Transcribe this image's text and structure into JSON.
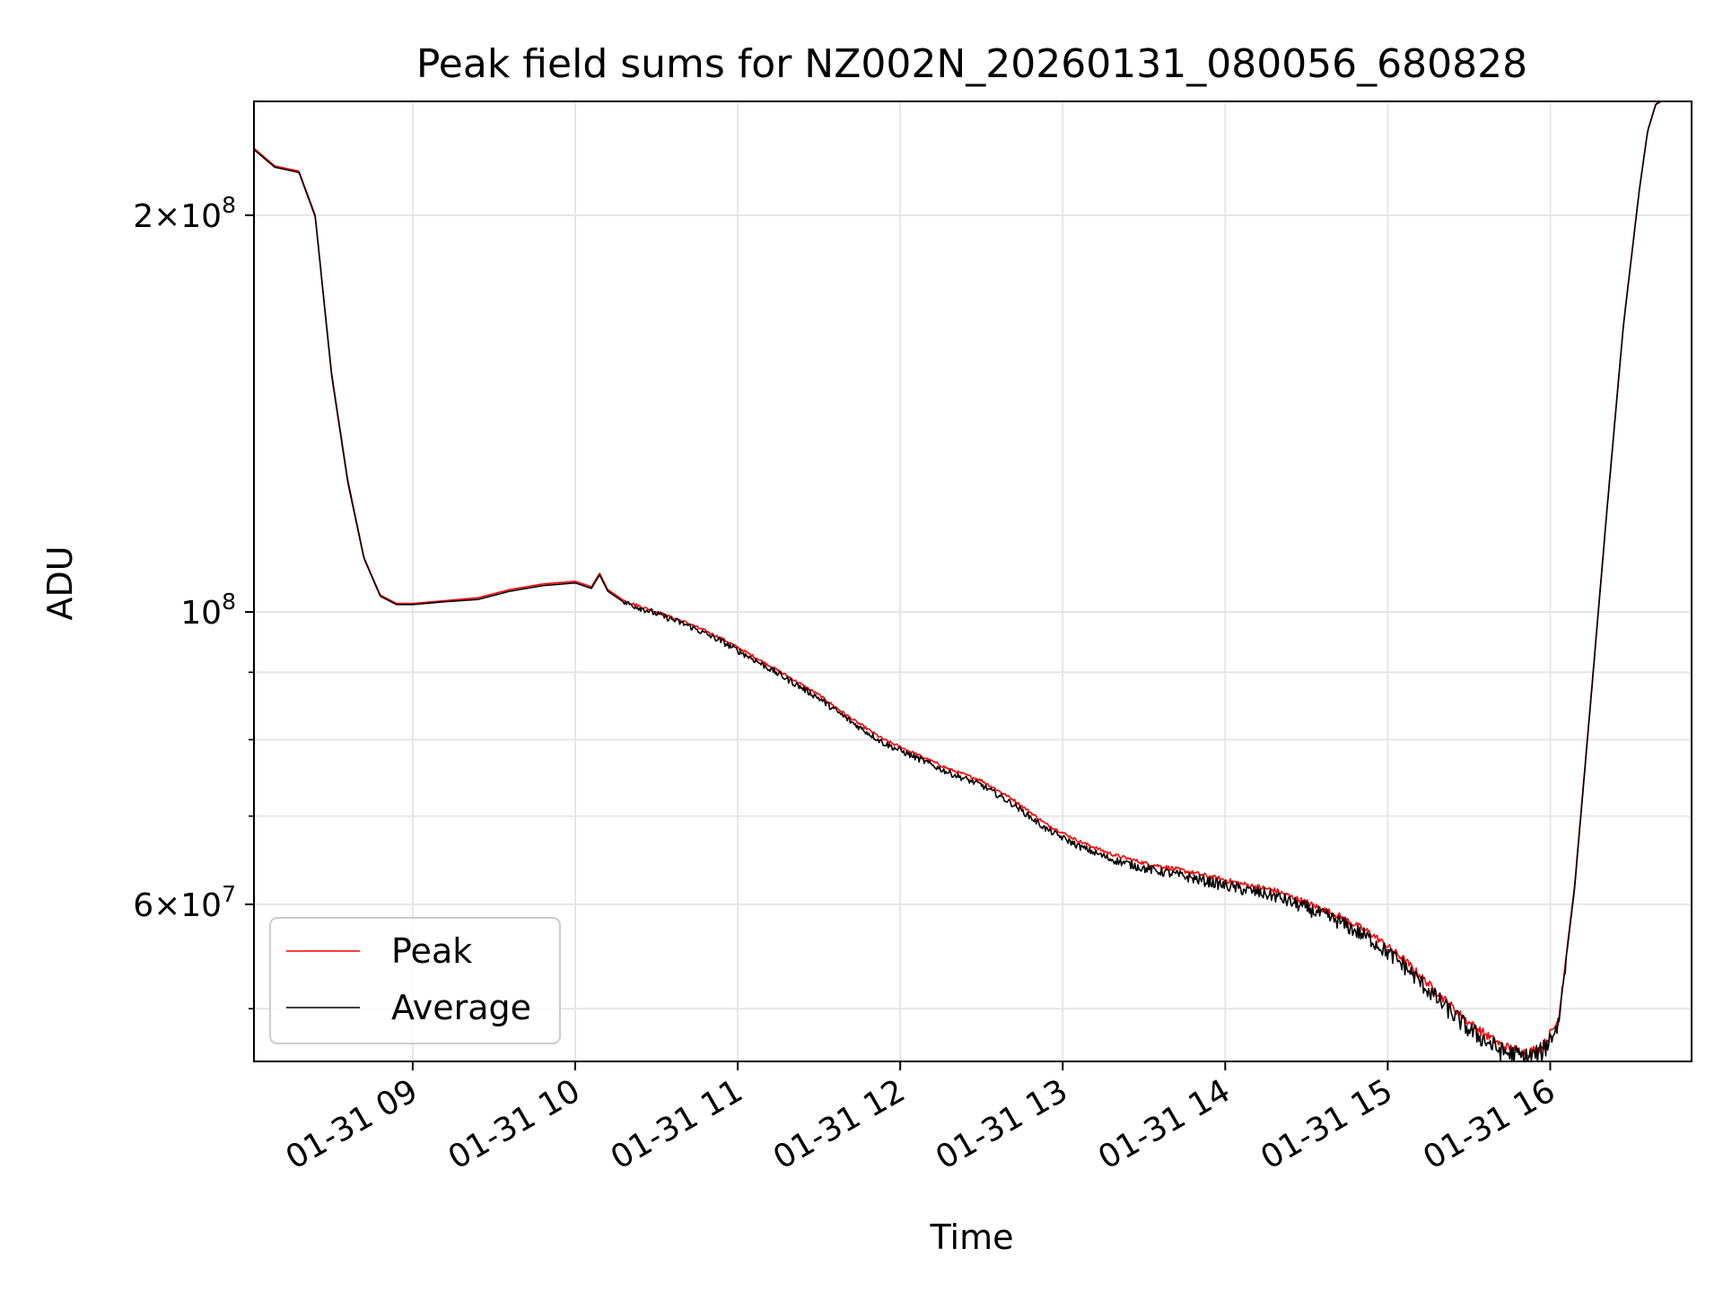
{
  "chart_data": {
    "type": "line",
    "title": "Peak field sums for NZ002N_20260131_080056_680828",
    "xlabel": "Time",
    "ylabel": "ADU",
    "x_unit": "hours since 01-31 00:00",
    "xlim": [
      8.023,
      16.87
    ],
    "ylim": [
      45600000,
      244000000
    ],
    "y_scale": "log",
    "grid": true,
    "legend_position": "lower-left",
    "x_ticks": [
      {
        "value": 9,
        "label": "01-31 09"
      },
      {
        "value": 10,
        "label": "01-31 10"
      },
      {
        "value": 11,
        "label": "01-31 11"
      },
      {
        "value": 12,
        "label": "01-31 12"
      },
      {
        "value": 13,
        "label": "01-31 13"
      },
      {
        "value": 14,
        "label": "01-31 14"
      },
      {
        "value": 15,
        "label": "01-31 15"
      },
      {
        "value": 16,
        "label": "01-31 16"
      }
    ],
    "y_major_ticks": [
      {
        "value": 60000000,
        "mantissa": "6",
        "base": "10",
        "exp": "7"
      },
      {
        "value": 100000000,
        "mantissa": "",
        "base": "10",
        "exp": "8"
      },
      {
        "value": 200000000,
        "mantissa": "2",
        "base": "10",
        "exp": "8"
      }
    ],
    "y_minor_ticks": [
      50000000,
      70000000,
      80000000,
      90000000
    ],
    "series": [
      {
        "name": "Peak",
        "color": "#ff0000",
        "x": [
          8.02,
          8.15,
          8.3,
          8.4,
          8.5,
          8.6,
          8.7,
          8.8,
          8.9,
          9.0,
          9.2,
          9.4,
          9.6,
          9.8,
          10.0,
          10.1,
          10.15,
          10.2,
          10.3,
          10.5,
          10.7,
          10.9,
          11.1,
          11.3,
          11.5,
          11.7,
          11.9,
          12.1,
          12.3,
          12.5,
          12.7,
          12.9,
          13.1,
          13.3,
          13.5,
          13.7,
          13.9,
          14.1,
          14.3,
          14.5,
          14.7,
          14.9,
          15.1,
          15.3,
          15.5,
          15.7,
          15.85,
          15.95,
          16.05,
          16.15,
          16.25,
          16.35,
          16.45,
          16.55,
          16.6,
          16.65,
          16.7,
          16.87
        ],
        "y": [
          225000000,
          218000000,
          216000000,
          200000000,
          152000000,
          126000000,
          110000000,
          103000000,
          101500000,
          101500000,
          102000000,
          102500000,
          104000000,
          105000000,
          105500000,
          104500000,
          107000000,
          104000000,
          102000000,
          100000000,
          98000000,
          95500000,
          92500000,
          89500000,
          86500000,
          83000000,
          80000000,
          78000000,
          76000000,
          74500000,
          72000000,
          69000000,
          67000000,
          65500000,
          64500000,
          63800000,
          63000000,
          62200000,
          61500000,
          60200000,
          58800000,
          57000000,
          54500000,
          51500000,
          48800000,
          46900000,
          46300000,
          46700000,
          49000000,
          62000000,
          86000000,
          120000000,
          165000000,
          210000000,
          232000000,
          243000000,
          245000000,
          246000000
        ]
      },
      {
        "name": "Average",
        "color": "#000000",
        "x": [
          8.02,
          8.15,
          8.3,
          8.4,
          8.5,
          8.6,
          8.7,
          8.8,
          8.9,
          9.0,
          9.2,
          9.4,
          9.6,
          9.8,
          10.0,
          10.1,
          10.15,
          10.2,
          10.3,
          10.5,
          10.7,
          10.9,
          11.1,
          11.3,
          11.5,
          11.7,
          11.9,
          12.1,
          12.3,
          12.5,
          12.7,
          12.9,
          13.1,
          13.3,
          13.5,
          13.7,
          13.9,
          14.1,
          14.3,
          14.5,
          14.7,
          14.9,
          15.1,
          15.3,
          15.5,
          15.7,
          15.85,
          15.95,
          16.05,
          16.15,
          16.25,
          16.35,
          16.45,
          16.55,
          16.6,
          16.65,
          16.7,
          16.87
        ],
        "y": [
          224500000,
          217500000,
          215500000,
          199500000,
          151500000,
          125500000,
          109800000,
          102800000,
          101300000,
          101300000,
          101800000,
          102200000,
          103700000,
          104700000,
          105200000,
          104200000,
          106700000,
          103700000,
          101700000,
          99700000,
          97600000,
          95000000,
          92000000,
          89000000,
          86000000,
          82500000,
          79500000,
          77500000,
          75500000,
          73900000,
          71400000,
          68400000,
          66400000,
          64900000,
          63900000,
          63200000,
          62400000,
          61600000,
          60900000,
          59600000,
          58200000,
          56400000,
          53900000,
          50900000,
          48200000,
          46400000,
          45900000,
          46300000,
          48700000,
          61700000,
          85700000,
          119700000,
          164700000,
          209700000,
          231700000,
          242700000,
          244700000,
          245700000
        ]
      }
    ]
  }
}
